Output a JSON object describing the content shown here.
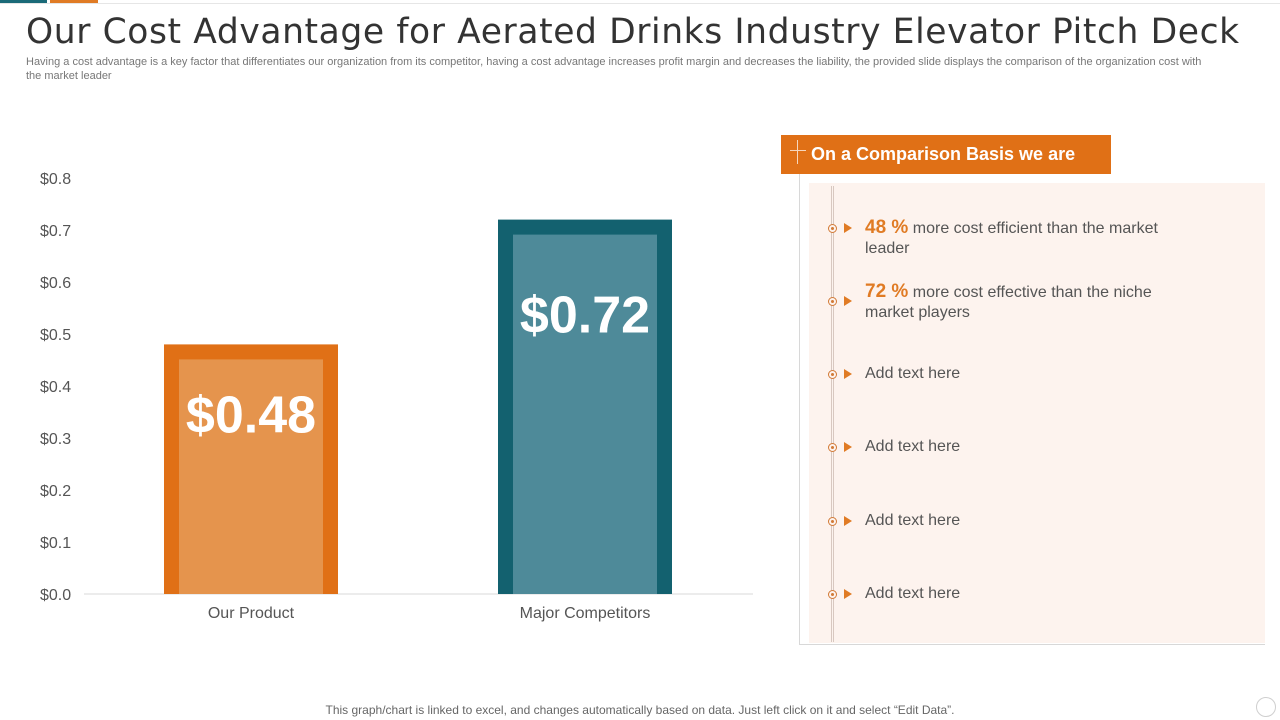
{
  "slide": {
    "title": "Our Cost Advantage for Aerated Drinks Industry Elevator Pitch Deck",
    "subtitle": "Having a cost advantage is a key factor that differentiates our organization from its competitor, having a cost advantage increases profit margin and decreases the liability, the provided slide displays the comparison of the organization cost with the market leader",
    "footer_note": "This graph/chart is linked to excel,  and changes automatically based on data. Just left click on it and select “Edit Data”."
  },
  "chart_data": {
    "type": "bar",
    "categories": [
      "Our Product",
      "Major Competitors"
    ],
    "values": [
      0.48,
      0.72
    ],
    "data_labels": [
      "$0.48",
      "$0.72"
    ],
    "yticks": [
      "$0.0",
      "$0.1",
      "$0.2",
      "$0.3",
      "$0.4",
      "$0.5",
      "$0.6",
      "$0.7",
      "$0.8"
    ],
    "ylim": [
      0,
      0.8
    ],
    "grid": false,
    "legend": "none",
    "colors": {
      "our_product_border": "#e07016",
      "our_product_fill": "#e5944d",
      "competitors_border": "#13616f",
      "competitors_fill": "#4e8a99"
    }
  },
  "panel": {
    "header": "On a Comparison Basis we are",
    "items": [
      {
        "highlight": "48 %",
        "text": " more cost efficient than the market leader"
      },
      {
        "highlight": "72 %",
        "text": " more cost effective than the niche market players"
      },
      {
        "highlight": "",
        "text": "Add text here"
      },
      {
        "highlight": "",
        "text": "Add text here"
      },
      {
        "highlight": "",
        "text": "Add text here"
      },
      {
        "highlight": "",
        "text": "Add text here"
      }
    ]
  },
  "colors": {
    "accent_orange": "#e07016",
    "accent_teal": "#13616f",
    "panel_background": "#fdf3ee"
  }
}
